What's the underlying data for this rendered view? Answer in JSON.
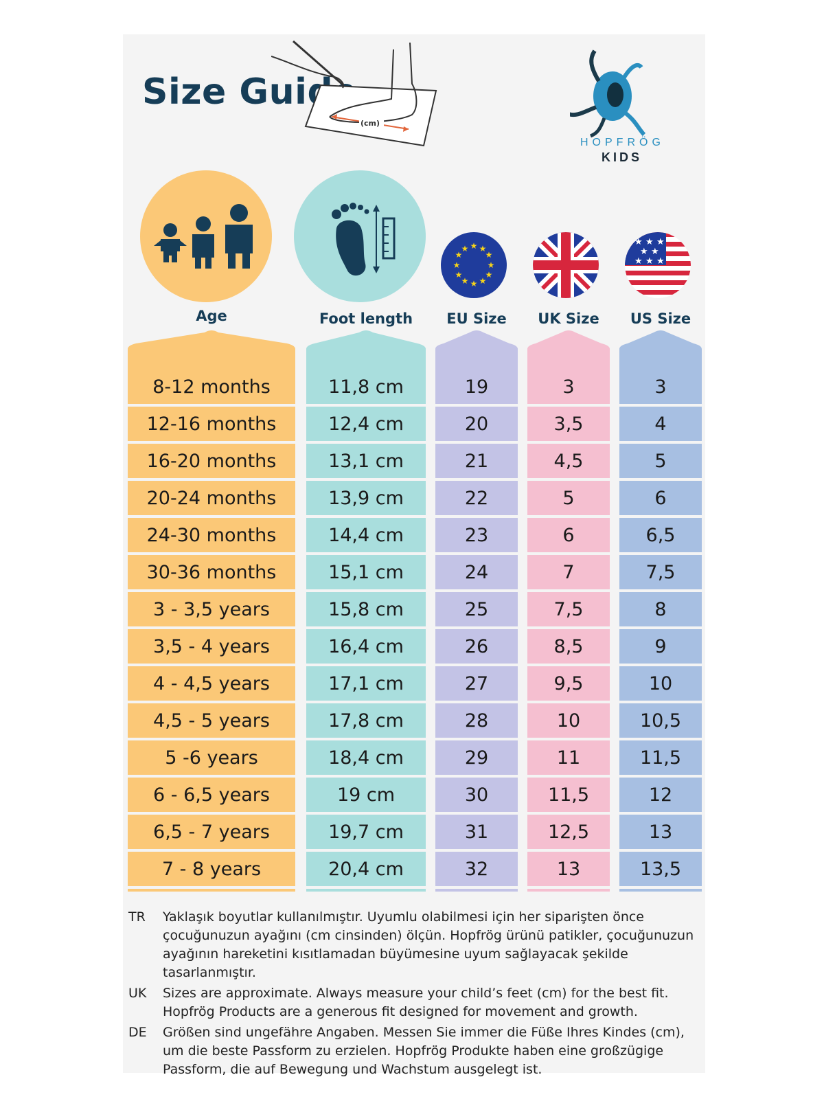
{
  "title": "Size Guide",
  "sketch_label": "(cm)",
  "brand": {
    "name": "HOPFRÖG",
    "sub": "KIDS"
  },
  "columns": [
    {
      "key": "age",
      "label": "Age",
      "color": "#fbc877",
      "icon": "family-icon"
    },
    {
      "key": "foot",
      "label": "Foot length",
      "color": "#a9dedd",
      "icon": "foot-ruler-icon"
    },
    {
      "key": "eu",
      "label": "EU Size",
      "color": "#c3c3e6",
      "icon": "eu-flag-icon"
    },
    {
      "key": "uk",
      "label": "UK Size",
      "color": "#f5bfd0",
      "icon": "uk-flag-icon"
    },
    {
      "key": "us",
      "label": "US Size",
      "color": "#a7bfe2",
      "icon": "us-flag-icon"
    }
  ],
  "rows": [
    {
      "age": "8-12 months",
      "foot": "11,8 cm",
      "eu": "19",
      "uk": "3",
      "us": "3"
    },
    {
      "age": "12-16 months",
      "foot": "12,4 cm",
      "eu": "20",
      "uk": "3,5",
      "us": "4"
    },
    {
      "age": "16-20 months",
      "foot": "13,1 cm",
      "eu": "21",
      "uk": "4,5",
      "us": "5"
    },
    {
      "age": "20-24 months",
      "foot": "13,9 cm",
      "eu": "22",
      "uk": "5",
      "us": "6"
    },
    {
      "age": "24-30 months",
      "foot": "14,4 cm",
      "eu": "23",
      "uk": "6",
      "us": "6,5"
    },
    {
      "age": "30-36 months",
      "foot": "15,1 cm",
      "eu": "24",
      "uk": "7",
      "us": "7,5"
    },
    {
      "age": "3 - 3,5 years",
      "foot": "15,8 cm",
      "eu": "25",
      "uk": "7,5",
      "us": "8"
    },
    {
      "age": "3,5 - 4 years",
      "foot": "16,4 cm",
      "eu": "26",
      "uk": "8,5",
      "us": "9"
    },
    {
      "age": "4 - 4,5 years",
      "foot": "17,1 cm",
      "eu": "27",
      "uk": "9,5",
      "us": "10"
    },
    {
      "age": "4,5 - 5 years",
      "foot": "17,8 cm",
      "eu": "28",
      "uk": "10",
      "us": "10,5"
    },
    {
      "age": "5 -6 years",
      "foot": "18,4 cm",
      "eu": "29",
      "uk": "11",
      "us": "11,5"
    },
    {
      "age": "6 - 6,5 years",
      "foot": "19 cm",
      "eu": "30",
      "uk": "11,5",
      "us": "12"
    },
    {
      "age": "6,5 - 7 years",
      "foot": "19,7 cm",
      "eu": "31",
      "uk": "12,5",
      "us": "13"
    },
    {
      "age": "7 - 8 years",
      "foot": "20,4 cm",
      "eu": "32",
      "uk": "13",
      "us": "13,5"
    }
  ],
  "notes": [
    {
      "lang": "TR",
      "text": "Yaklaşık boyutlar kullanılmıştır. Uyumlu olabilmesi için her siparişten önce çocuğunuzun ayağını (cm cinsinden) ölçün. Hopfrög ürünü patikler, çocuğunuzun ayağının hareketini kısıtlamadan büyümesine uyum sağlayacak şekilde tasarlanmıştır."
    },
    {
      "lang": "UK",
      "text": "Sizes are approximate. Always measure your child’s feet (cm) for the best fit. Hopfrög Products are a generous fit designed for movement and growth."
    },
    {
      "lang": "DE",
      "text": "Größen sind ungefähre Angaben. Messen Sie immer die Füße Ihres Kindes (cm), um die beste Passform zu erzielen. Hopfrög Produkte haben eine großzügige Passform, die auf Bewegung und Wachstum ausgelegt ist."
    }
  ]
}
